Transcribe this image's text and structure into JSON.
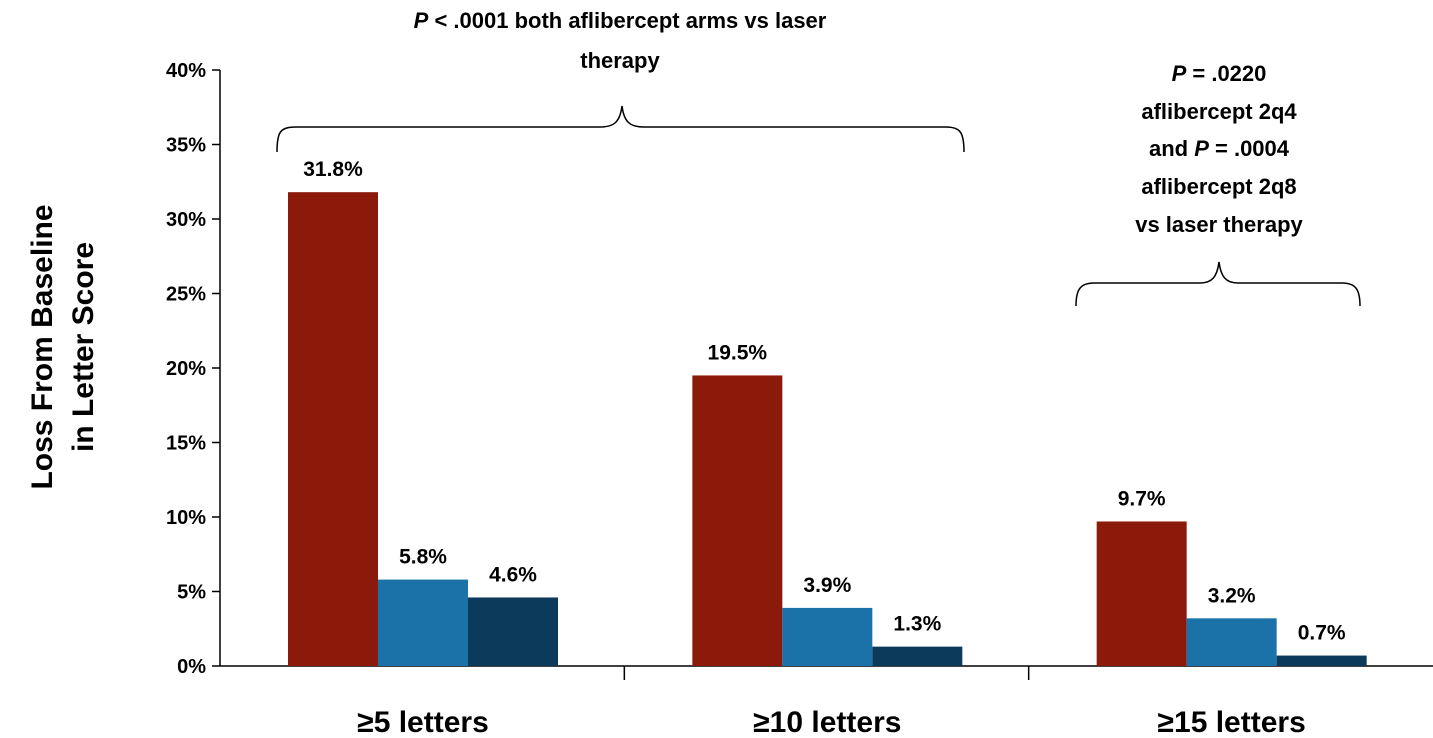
{
  "chart_data": {
    "type": "bar",
    "categories": [
      "≥5 letters",
      "≥10 letters",
      "≥15 letters"
    ],
    "series": [
      {
        "values": [
          31.8,
          19.5,
          9.7
        ],
        "color": "#8B1A0A"
      },
      {
        "values": [
          5.8,
          3.9,
          3.2
        ],
        "color": "#1A72A8"
      },
      {
        "values": [
          4.6,
          1.3,
          0.7
        ],
        "color": "#0C3A5A"
      }
    ],
    "data_labels": [
      [
        "31.8%",
        "19.5%",
        "9.7%"
      ],
      [
        "5.8%",
        "3.9%",
        "3.2%"
      ],
      [
        "4.6%",
        "1.3%",
        "0.7%"
      ]
    ],
    "ylabel_lines": [
      "Loss From Baseline",
      "in Letter Score"
    ],
    "ylim": [
      0,
      40
    ],
    "yticks": [
      "0%",
      "5%",
      "10%",
      "15%",
      "20%",
      "25%",
      "30%",
      "35%",
      "40%"
    ],
    "grid": false,
    "legend": "none",
    "annotations": {
      "left_bracket": {
        "line1_italic": "P",
        "line1_rest": " < .0001 both aflibercept arms vs laser",
        "line2": "therapy"
      },
      "right_bracket": {
        "line1_italic": "P",
        "line1_rest": " = .0220",
        "line2": "aflibercept 2q4",
        "line3_pre": "and ",
        "line3_italic": "P",
        "line3_rest": " = .0004",
        "line4": "aflibercept 2q8",
        "line5": "vs laser therapy"
      }
    }
  }
}
